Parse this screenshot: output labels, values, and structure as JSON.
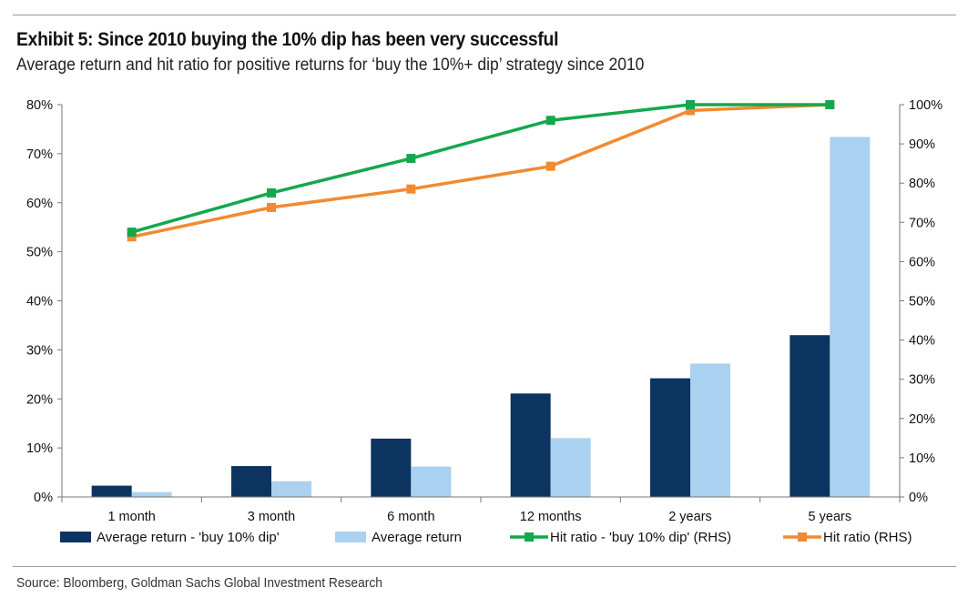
{
  "header": {
    "title": "Exhibit 5: Since 2010 buying the 10% dip has been very successful",
    "subtitle": "Average return and hit ratio for positive returns for ‘buy the 10%+ dip’ strategy since 2010"
  },
  "footer": {
    "source": "Source: Bloomberg, Goldman Sachs Global Investment Research"
  },
  "chart_data": {
    "type": "bar",
    "categories": [
      "1 month",
      "3 month",
      "6 month",
      "12 months",
      "2 years",
      "5 years"
    ],
    "left_axis": {
      "ylim": [
        0,
        80
      ],
      "ticks": [
        0,
        10,
        20,
        30,
        40,
        50,
        60,
        70,
        80
      ],
      "tick_labels": [
        "0%",
        "10%",
        "20%",
        "30%",
        "40%",
        "50%",
        "60%",
        "70%",
        "80%"
      ]
    },
    "right_axis": {
      "ylim": [
        0,
        100
      ],
      "ticks": [
        0,
        10,
        20,
        30,
        40,
        50,
        60,
        70,
        80,
        90,
        100
      ],
      "tick_labels": [
        "0%",
        "10%",
        "20%",
        "30%",
        "40%",
        "50%",
        "60%",
        "70%",
        "80%",
        "90%",
        "100%"
      ]
    },
    "series": [
      {
        "name": "Average return - 'buy 10% dip'",
        "kind": "bar",
        "axis": "left",
        "color": "#0c3460",
        "values": [
          2.3,
          6.3,
          11.9,
          21.1,
          24.2,
          33.0
        ]
      },
      {
        "name": "Average return",
        "kind": "bar",
        "axis": "left",
        "color": "#aad1ef",
        "values": [
          1.0,
          3.2,
          6.2,
          12.0,
          27.2,
          73.4
        ]
      },
      {
        "name": "Hit ratio - 'buy 10% dip' (RHS)",
        "kind": "line",
        "axis": "right",
        "color": "#13a84c",
        "values": [
          67.5,
          77.5,
          86.3,
          96.0,
          100.0,
          100.0
        ]
      },
      {
        "name": "Hit ratio (RHS)",
        "kind": "line",
        "axis": "right",
        "color": "#f28a30",
        "values": [
          66.3,
          73.8,
          78.5,
          84.3,
          98.5,
          100.0
        ]
      }
    ],
    "grid": false,
    "legend_position": "bottom"
  }
}
